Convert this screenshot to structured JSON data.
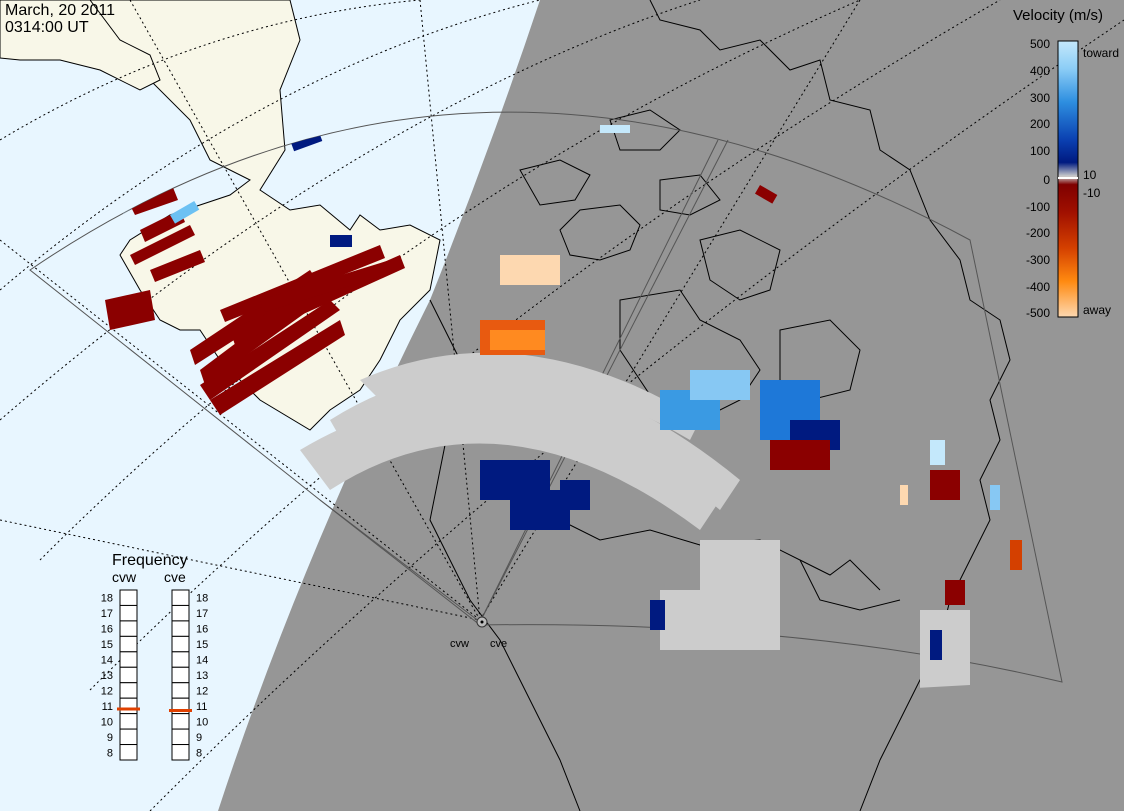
{
  "header": {
    "date": "March, 20 2011",
    "time": "0314:00 UT"
  },
  "colorbar": {
    "title": "Velocity (m/s)",
    "ticks": [
      "500",
      "400",
      "300",
      "200",
      "100",
      "10",
      "0",
      "-10",
      "-100",
      "-200",
      "-300",
      "-400",
      "-500"
    ],
    "toward_label": "toward",
    "away_label": "away",
    "colors": {
      "toward_top": "#c4e8fb",
      "toward_mid": "#2e8fe0",
      "toward_low": "#001a80",
      "zero_band": "#cccccc",
      "away_low": "#7f0000",
      "away_mid": "#e05000",
      "away_top": "#fdd8b0"
    }
  },
  "frequency": {
    "title": "Frequency",
    "radar_left": "cvw",
    "radar_right": "cve",
    "scale_labels": [
      "18",
      "17",
      "16",
      "15",
      "14",
      "13",
      "12",
      "11",
      "10",
      "9",
      "8"
    ],
    "scale_min": 8,
    "scale_max": 18,
    "cvw_mhz": 10.8,
    "cve_mhz": 10.7,
    "marker_color": "#e04000"
  },
  "map": {
    "sites": [
      "cvw",
      "cve"
    ],
    "colors": {
      "ocean": "#e8f6ff",
      "land": "#f8f7e8",
      "night": "#969696",
      "coast": "#000000",
      "groundscatter": "#cccccc"
    }
  }
}
